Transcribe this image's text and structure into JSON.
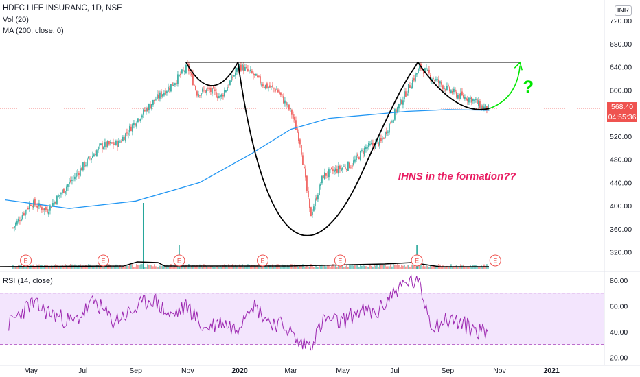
{
  "header": {
    "title": "HDFC LIFE INSURANC, 1D, NSE",
    "volume_indicator": "Vol (20)",
    "ma_indicator": "MA (200, close, 0)",
    "currency": "INR"
  },
  "price_badge": {
    "last_price": "568.40",
    "countdown": "04:55:36",
    "color": "#ef5350"
  },
  "rsi_panel": {
    "label": "RSI (14, close)",
    "band_upper": 70,
    "band_lower": 30,
    "line_color": "#9c27b0",
    "band_fill": "#f3e5fd"
  },
  "annotation": {
    "text": "IHNS in the formation??",
    "color": "#e91e63",
    "question_mark": "?",
    "arrow_color": "#00e600"
  },
  "earnings_marker": {
    "label": "E",
    "count": 7,
    "color": "#ef5350"
  },
  "colors": {
    "up": "#26a69a",
    "down": "#ef5350",
    "ma": "#2196f3",
    "pattern": "#000000"
  },
  "chart_data": [
    {
      "type": "candlestick",
      "title": "HDFC LIFE INSURANC, 1D, NSE",
      "ylabel": "INR",
      "ylim": [
        300,
        740
      ],
      "y_ticks": [
        320,
        360,
        400,
        440,
        480,
        520,
        560,
        600,
        640,
        680,
        720
      ],
      "x_ticks": [
        "May",
        "Jul",
        "Sep",
        "Nov",
        "2020",
        "Mar",
        "May",
        "Jul",
        "Sep",
        "Nov",
        "2021"
      ],
      "close_path": {
        "x": [
          "2019-04-10",
          "2019-05-01",
          "2019-05-20",
          "2019-06-10",
          "2019-07-01",
          "2019-07-22",
          "2019-08-12",
          "2019-09-02",
          "2019-09-23",
          "2019-10-14",
          "2019-11-01",
          "2019-11-12",
          "2019-11-26",
          "2019-12-10",
          "2020-01-01",
          "2020-01-15",
          "2020-01-30",
          "2020-02-14",
          "2020-03-02",
          "2020-03-12",
          "2020-03-24",
          "2020-04-08",
          "2020-04-24",
          "2020-05-12",
          "2020-05-28",
          "2020-06-15",
          "2020-07-01",
          "2020-07-15",
          "2020-07-31",
          "2020-08-14",
          "2020-08-31",
          "2020-09-14",
          "2020-09-29",
          "2020-10-12",
          "2020-10-20"
        ],
        "values": [
          362,
          405,
          392,
          430,
          468,
          503,
          508,
          548,
          582,
          610,
          640,
          595,
          600,
          588,
          642,
          628,
          608,
          600,
          560,
          510,
          382,
          452,
          462,
          472,
          500,
          510,
          560,
          598,
          640,
          622,
          602,
          590,
          585,
          570,
          568
        ]
      },
      "ma200": {
        "x": [
          "2019-04-01",
          "2019-06-15",
          "2019-09-01",
          "2019-11-15",
          "2020-01-15",
          "2020-03-01",
          "2020-04-15",
          "2020-06-01",
          "2020-07-15",
          "2020-09-01",
          "2020-10-20"
        ],
        "values": [
          410,
          395,
          408,
          440,
          490,
          532,
          551,
          557,
          563,
          566,
          565
        ]
      },
      "volume_spikes": [
        {
          "x": "2019-09-10",
          "label": "tall"
        },
        {
          "x": "2019-10-22",
          "label": "medium"
        },
        {
          "x": "2020-07-27",
          "label": "medium"
        }
      ],
      "earnings_dates": [
        "2019-04-25",
        "2019-07-25",
        "2019-10-22",
        "2020-01-28",
        "2020-04-28",
        "2020-07-27",
        "2020-10-27"
      ],
      "annotations": [
        "IHNS in the formation??",
        "?"
      ],
      "neckline": 648,
      "left_shoulder_low": 567,
      "head_low": 345,
      "right_shoulder_low": 568,
      "last_price": 568.4
    },
    {
      "type": "line",
      "title": "RSI (14, close)",
      "ylim": [
        15,
        85
      ],
      "y_ticks": [
        20,
        40,
        60,
        80
      ],
      "x": [
        "2019-04-05",
        "2019-05-01",
        "2019-05-25",
        "2019-06-20",
        "2019-07-15",
        "2019-08-05",
        "2019-08-28",
        "2019-09-20",
        "2019-10-12",
        "2019-11-01",
        "2019-11-20",
        "2019-12-10",
        "2019-12-28",
        "2020-01-14",
        "2020-02-05",
        "2020-02-25",
        "2020-03-10",
        "2020-03-24",
        "2020-04-10",
        "2020-04-28",
        "2020-05-20",
        "2020-06-10",
        "2020-07-01",
        "2020-07-20",
        "2020-07-30",
        "2020-08-14",
        "2020-09-05",
        "2020-09-25",
        "2020-10-12",
        "2020-10-20"
      ],
      "values": [
        46,
        62,
        54,
        47,
        64,
        48,
        56,
        66,
        52,
        60,
        42,
        48,
        42,
        63,
        48,
        44,
        31,
        30,
        50,
        47,
        56,
        54,
        72,
        80,
        76,
        45,
        50,
        44,
        40,
        41
      ],
      "band": [
        30,
        70
      ]
    }
  ]
}
